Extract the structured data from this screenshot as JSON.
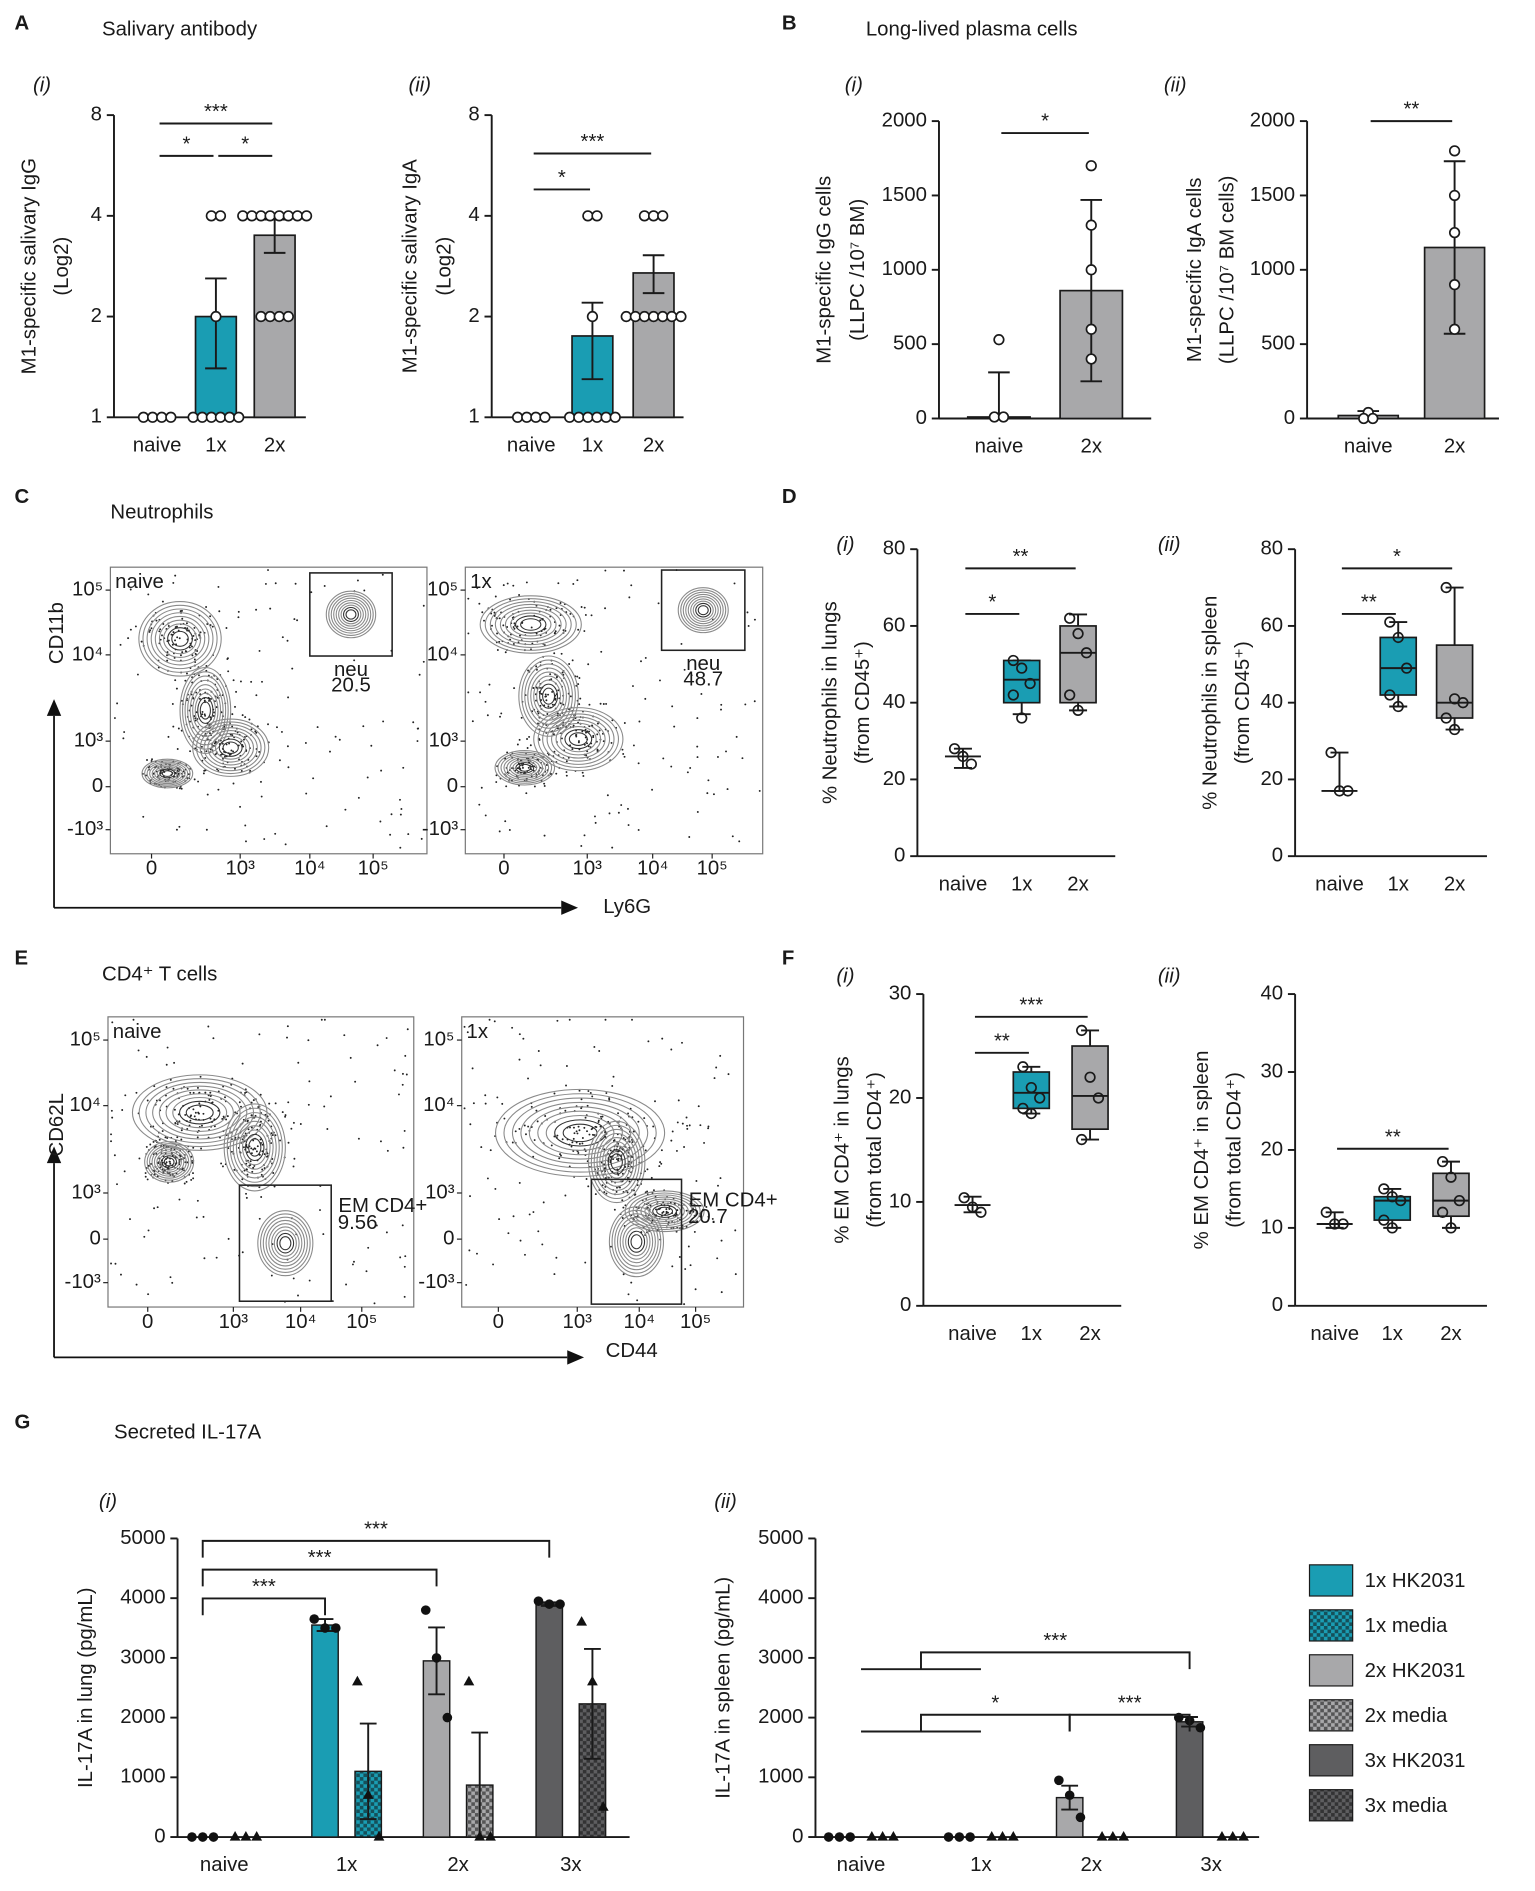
{
  "panels": [
    {
      "letter": "A",
      "title": "Salivary antibody"
    },
    {
      "letter": "B",
      "title": "Long-lived plasma cells"
    },
    {
      "letter": "C",
      "title": "Neutrophils"
    },
    {
      "letter": "D"
    },
    {
      "letter": "E",
      "title": "CD4⁺ T cells"
    },
    {
      "letter": "F"
    },
    {
      "letter": "G",
      "title": "Secreted IL-17A"
    }
  ],
  "chart_data": [
    {
      "type": "bar",
      "label": "(i)",
      "ylabel": [
        "M1-specific salivary IgG",
        "(Log2)"
      ],
      "categories": [
        "naive",
        "1x",
        "2x"
      ],
      "values": [
        1,
        2,
        3.5
      ],
      "errors": [
        0,
        0.6,
        0.4
      ],
      "colors": [
        "#ffffff",
        "#1a9db3",
        "#a8a8aa"
      ],
      "points": [
        [
          1,
          1,
          1,
          1
        ],
        [
          4,
          4,
          2,
          1,
          1,
          1,
          1,
          1,
          1
        ],
        [
          4,
          4,
          4,
          4,
          4,
          4,
          4,
          4,
          2,
          2,
          2,
          2
        ]
      ],
      "ylim": [
        1,
        8
      ],
      "yticks": [
        1,
        2,
        4,
        8
      ],
      "log_base": 2,
      "significance": [
        {
          "from": 0,
          "to": 2,
          "text": "***"
        },
        {
          "from": 0,
          "to": 1,
          "text": "*"
        },
        {
          "from": 1,
          "to": 2,
          "text": "*"
        }
      ]
    },
    {
      "type": "bar",
      "label": "(ii)",
      "ylabel": [
        "M1-specific salivary IgA",
        "(Log2)"
      ],
      "categories": [
        "naive",
        "1x",
        "2x"
      ],
      "values": [
        1,
        1.75,
        2.7
      ],
      "errors": [
        0,
        0.45,
        0.35
      ],
      "colors": [
        "#ffffff",
        "#1a9db3",
        "#a8a8aa"
      ],
      "points": [
        [
          1,
          1,
          1,
          1
        ],
        [
          4,
          4,
          2,
          1,
          1,
          1,
          1,
          1,
          1
        ],
        [
          4,
          4,
          4,
          2,
          2,
          2,
          2,
          2,
          2,
          2
        ]
      ],
      "ylim": [
        1,
        8
      ],
      "yticks": [
        1,
        2,
        4,
        8
      ],
      "log_base": 2,
      "significance": [
        {
          "from": 0,
          "to": 2,
          "text": "***"
        },
        {
          "from": 0,
          "to": 1,
          "text": "*"
        }
      ]
    },
    {
      "type": "bar",
      "label": "(i)",
      "ylabel": [
        "M1-specific IgG cells",
        "(LLPC /10⁷ BM)"
      ],
      "categories": [
        "naive",
        "2x"
      ],
      "values": [
        10,
        860
      ],
      "errors": [
        300,
        610
      ],
      "colors": [
        "#a8a8aa",
        "#a8a8aa"
      ],
      "points": [
        [
          530,
          10,
          10
        ],
        [
          1700,
          1300,
          1000,
          600,
          400
        ]
      ],
      "ylim": [
        0,
        2000
      ],
      "yticks": [
        0,
        500,
        1000,
        1500,
        2000
      ],
      "significance": [
        {
          "from": 0,
          "to": 1,
          "text": "*"
        }
      ]
    },
    {
      "type": "bar",
      "label": "(ii)",
      "ylabel": [
        "M1-specific IgA cells",
        "(LLPC /10⁷ BM cells)"
      ],
      "categories": [
        "naive",
        "2x"
      ],
      "values": [
        20,
        1150
      ],
      "errors": [
        30,
        580
      ],
      "colors": [
        "#a8a8aa",
        "#a8a8aa"
      ],
      "points": [
        [
          40,
          0,
          0
        ],
        [
          1800,
          1500,
          1250,
          900,
          600
        ]
      ],
      "ylim": [
        0,
        2000
      ],
      "yticks": [
        0,
        500,
        1000,
        1500,
        2000
      ],
      "significance": [
        {
          "from": 0,
          "to": 1,
          "text": "**"
        }
      ]
    },
    {
      "type": "flow",
      "xlabel": "Ly6G",
      "ylabel": "CD11b",
      "xtick_labels": [
        "0",
        "10³",
        "10⁴",
        "10⁵"
      ],
      "ytick_labels": [
        "10⁵",
        "10⁴",
        "10³",
        "0",
        "-10³"
      ],
      "samples": [
        {
          "label": "naive",
          "gate": "neu",
          "gate_value": 20.5
        },
        {
          "label": "1x",
          "gate": "neu",
          "gate_value": 48.7
        }
      ]
    },
    {
      "type": "box",
      "label": "(i)",
      "ylabel": [
        "% Neutrophils in lungs",
        "(from CD45⁺)"
      ],
      "categories": [
        "naive",
        "1x",
        "2x"
      ],
      "colors": [
        "#ffffff",
        "#1a9db3",
        "#a8a8aa"
      ],
      "boxes": [
        {
          "min": 23,
          "q1": 26,
          "median": 26,
          "q3": 26,
          "max": 28
        },
        {
          "min": 37,
          "q1": 40,
          "median": 46,
          "q3": 51,
          "max": 51
        },
        {
          "min": 38,
          "q1": 40,
          "median": 53,
          "q3": 60,
          "max": 63
        }
      ],
      "points": [
        [
          28,
          26,
          24
        ],
        [
          51,
          49,
          45,
          42,
          36
        ],
        [
          62,
          58,
          53,
          42,
          38
        ]
      ],
      "ylim": [
        0,
        80
      ],
      "yticks": [
        0,
        20,
        40,
        60,
        80
      ],
      "significance": [
        {
          "from": 0,
          "to": 1,
          "text": "*"
        },
        {
          "from": 0,
          "to": 2,
          "text": "**"
        }
      ]
    },
    {
      "type": "box",
      "label": "(ii)",
      "ylabel": [
        "% Neutrophils in spleen",
        "(from CD45⁺)"
      ],
      "categories": [
        "naive",
        "1x",
        "2x"
      ],
      "colors": [
        "#ffffff",
        "#1a9db3",
        "#a8a8aa"
      ],
      "boxes": [
        {
          "min": 17,
          "q1": 17,
          "median": 17,
          "q3": 17,
          "max": 27
        },
        {
          "min": 39,
          "q1": 42,
          "median": 49,
          "q3": 57,
          "max": 61
        },
        {
          "min": 33,
          "q1": 36,
          "median": 40,
          "q3": 55,
          "max": 70
        }
      ],
      "points": [
        [
          27,
          17,
          17
        ],
        [
          61,
          57,
          49,
          42,
          39
        ],
        [
          70,
          41,
          40,
          36,
          33
        ]
      ],
      "ylim": [
        0,
        80
      ],
      "yticks": [
        0,
        20,
        40,
        60,
        80
      ],
      "significance": [
        {
          "from": 0,
          "to": 1,
          "text": "**"
        },
        {
          "from": 0,
          "to": 2,
          "text": "*"
        }
      ]
    },
    {
      "type": "flow",
      "xlabel": "CD44",
      "ylabel": "CD62L",
      "xtick_labels": [
        "0",
        "10³",
        "10⁴",
        "10⁵"
      ],
      "ytick_labels": [
        "10⁵",
        "10⁴",
        "10³",
        "0",
        "-10³"
      ],
      "samples": [
        {
          "label": "naive",
          "gate": "EM CD4+",
          "gate_value": 9.56
        },
        {
          "label": "1x",
          "gate": "EM CD4+",
          "gate_value": 20.7
        }
      ]
    },
    {
      "type": "box",
      "label": "(i)",
      "ylabel": [
        "% EM CD4⁺ in lungs",
        "(from total CD4⁺)"
      ],
      "categories": [
        "naive",
        "1x",
        "2x"
      ],
      "colors": [
        "#ffffff",
        "#1a9db3",
        "#a8a8aa"
      ],
      "boxes": [
        {
          "min": 9,
          "q1": 9.7,
          "median": 9.7,
          "q3": 9.7,
          "max": 10.5
        },
        {
          "min": 18.5,
          "q1": 19,
          "median": 20.5,
          "q3": 22.5,
          "max": 23
        },
        {
          "min": 16,
          "q1": 17,
          "median": 20.2,
          "q3": 25,
          "max": 26.5
        }
      ],
      "points": [
        [
          10.4,
          9.5,
          9
        ],
        [
          23,
          21,
          20,
          19,
          18.5
        ],
        [
          26.5,
          22,
          20,
          16
        ]
      ],
      "ylim": [
        0,
        30
      ],
      "yticks": [
        0,
        10,
        20,
        30
      ],
      "significance": [
        {
          "from": 0,
          "to": 1,
          "text": "**"
        },
        {
          "from": 0,
          "to": 2,
          "text": "***"
        }
      ]
    },
    {
      "type": "box",
      "label": "(ii)",
      "ylabel": [
        "% EM CD4⁺ in spleen",
        "(from total CD4⁺)"
      ],
      "categories": [
        "naive",
        "1x",
        "2x"
      ],
      "colors": [
        "#ffffff",
        "#1a9db3",
        "#a8a8aa"
      ],
      "boxes": [
        {
          "min": 10,
          "q1": 10.5,
          "median": 10.5,
          "q3": 10.5,
          "max": 12
        },
        {
          "min": 10,
          "q1": 11,
          "median": 13.5,
          "q3": 14,
          "max": 15
        },
        {
          "min": 10,
          "q1": 11.5,
          "median": 13.5,
          "q3": 17,
          "max": 18.5
        }
      ],
      "points": [
        [
          12,
          10.5,
          10.5
        ],
        [
          15,
          14,
          13.5,
          11,
          10
        ],
        [
          18.5,
          16.5,
          13.5,
          12,
          10
        ]
      ],
      "ylim": [
        0,
        40
      ],
      "yticks": [
        0,
        10,
        20,
        30,
        40
      ],
      "significance": [
        {
          "from": 0,
          "to": 2,
          "text": "**"
        }
      ]
    },
    {
      "type": "grouped",
      "label": "(i)",
      "ylabel": [
        "IL-17A in lung (pg/mL)"
      ],
      "categories": [
        "naive",
        "1x",
        "2x",
        "3x"
      ],
      "series": [
        {
          "values": [
            0,
            3550,
            2950,
            3900
          ],
          "errors": [
            0,
            100,
            560,
            30
          ],
          "colors": [
            null,
            "#1a9db3",
            "#a8a8aa",
            "#5e5e60"
          ],
          "marker": "circle",
          "points": [
            [
              0,
              0,
              0
            ],
            [
              3650,
              3500,
              3500
            ],
            [
              3800,
              3000,
              2000
            ],
            [
              3950,
              3900,
              3900
            ]
          ]
        },
        {
          "values": [
            0,
            1100,
            870,
            2230
          ],
          "errors": [
            0,
            800,
            880,
            920
          ],
          "colors": [
            null,
            "#1a9db3",
            "#a8a8aa",
            "#5e5e60"
          ],
          "pattern": "checker",
          "marker": "triangle",
          "points": [
            [
              0,
              0,
              0
            ],
            [
              2600,
              700,
              0
            ],
            [
              2600,
              0,
              0
            ],
            [
              3600,
              2600,
              500
            ]
          ]
        }
      ],
      "ylim": [
        0,
        5000
      ],
      "yticks": [
        0,
        1000,
        2000,
        3000,
        4000,
        5000
      ],
      "significance": [
        {
          "from": 0,
          "to": 1,
          "text": "***"
        },
        {
          "from": 0,
          "to": 2,
          "text": "***"
        },
        {
          "from": 0,
          "to": 3,
          "text": "***"
        }
      ]
    },
    {
      "type": "grouped",
      "label": "(ii)",
      "ylabel": [
        "IL-17A in spleen (pg/mL)"
      ],
      "categories": [
        "naive",
        "1x",
        "2x",
        "3x"
      ],
      "series": [
        {
          "values": [
            0,
            0,
            660,
            1930
          ],
          "errors": [
            0,
            0,
            200,
            80
          ],
          "colors": [
            null,
            "#1a9db3",
            "#a8a8aa",
            "#5e5e60"
          ],
          "marker": "circle",
          "points": [
            [
              0,
              0,
              0
            ],
            [
              0,
              0,
              0
            ],
            [
              950,
              700,
              330
            ],
            [
              2000,
              1950,
              1830
            ]
          ]
        },
        {
          "values": [
            0,
            0,
            0,
            0
          ],
          "errors": [
            0,
            0,
            0,
            0
          ],
          "colors": [
            null,
            "#1a9db3",
            "#a8a8aa",
            "#5e5e60"
          ],
          "pattern": "checker",
          "marker": "triangle",
          "points": [
            [
              0,
              0,
              0
            ],
            [
              0,
              0,
              0
            ],
            [
              0,
              0,
              0
            ],
            [
              0,
              0,
              0
            ]
          ]
        }
      ],
      "ylim": [
        0,
        5000
      ],
      "yticks": [
        0,
        1000,
        2000,
        3000,
        4000,
        5000
      ],
      "significance": [
        {
          "from": 2,
          "to": 3,
          "text": "***"
        },
        {
          "from": [
            0,
            1
          ],
          "to": 2,
          "text": "*"
        },
        {
          "from": [
            0,
            1
          ],
          "to": 3,
          "text": "***"
        }
      ],
      "legend": [
        {
          "name": "1x HK2031",
          "color": "#1a9db3"
        },
        {
          "name": "1x media",
          "color": "#1a9db3",
          "pattern": "checker"
        },
        {
          "name": "2x HK2031",
          "color": "#a8a8aa"
        },
        {
          "name": "2x media",
          "color": "#a8a8aa",
          "pattern": "checker"
        },
        {
          "name": "3x HK2031",
          "color": "#5e5e60"
        },
        {
          "name": "3x media",
          "color": "#5e5e60",
          "pattern": "checker"
        }
      ]
    }
  ]
}
